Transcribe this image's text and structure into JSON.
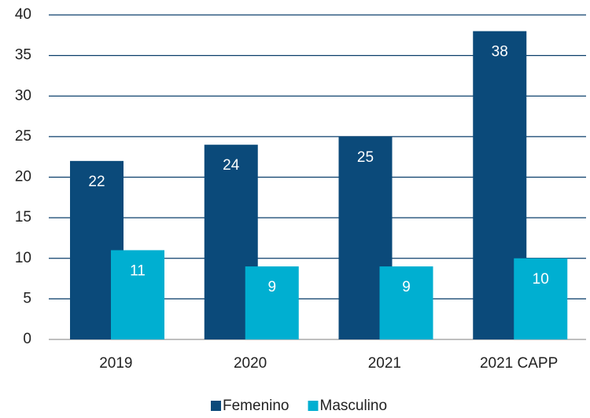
{
  "chart_data": {
    "type": "bar",
    "categories": [
      "2019",
      "2020",
      "2021",
      "2021 CAPP"
    ],
    "series": [
      {
        "name": "Femenino",
        "color": "#0b4a7a",
        "values": [
          22,
          24,
          25,
          38
        ]
      },
      {
        "name": "Masculino",
        "color": "#00afd1",
        "values": [
          11,
          9,
          9,
          10
        ]
      }
    ],
    "ylim": [
      0,
      40
    ],
    "yticks": [
      0,
      5,
      10,
      15,
      20,
      25,
      30,
      35,
      40
    ],
    "grid": true,
    "legend": "bottom"
  }
}
